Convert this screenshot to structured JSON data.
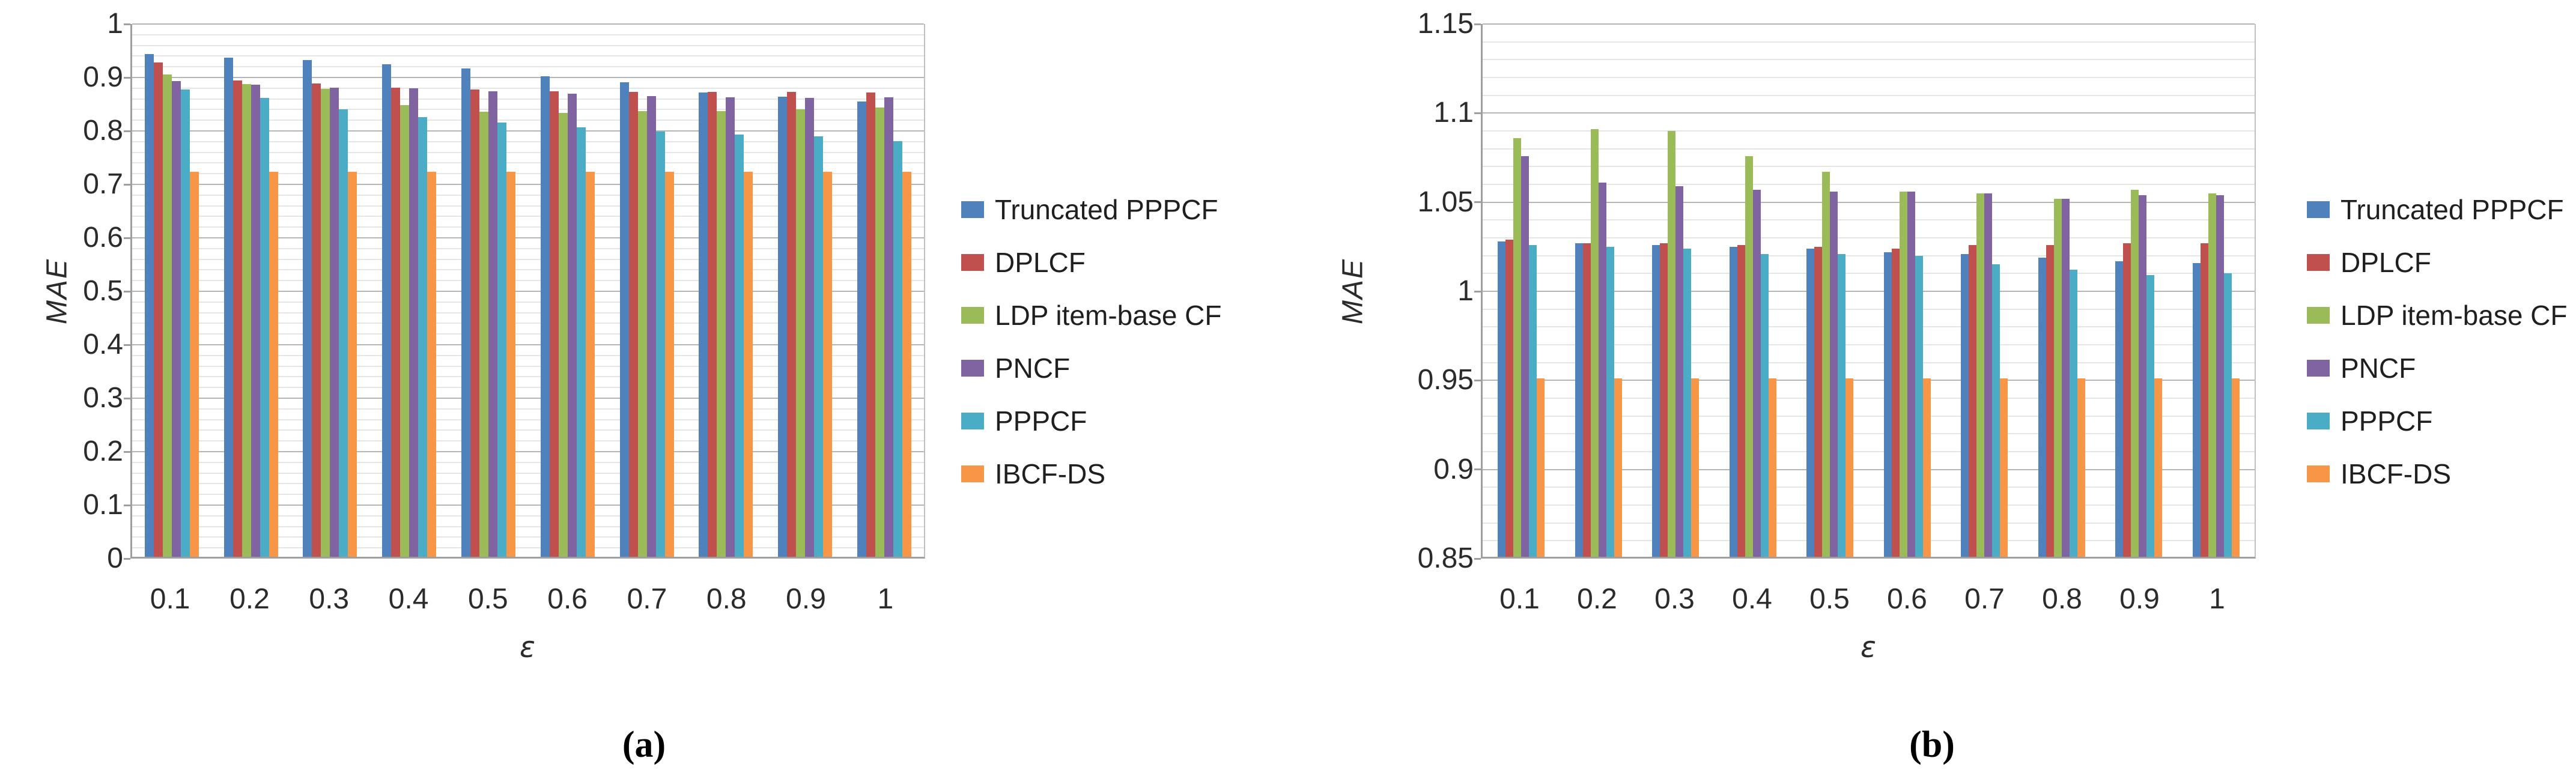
{
  "page": {
    "background": "#ffffff"
  },
  "legend": {
    "position": "right",
    "items": [
      {
        "label": "Truncated PPPCF",
        "color": "#4F81BD"
      },
      {
        "label": "DPLCF",
        "color": "#C0504D"
      },
      {
        "label": "LDP item-base CF",
        "color": "#9BBB59"
      },
      {
        "label": "PNCF",
        "color": "#8064A2"
      },
      {
        "label": "PPPCF",
        "color": "#4BACC6"
      },
      {
        "label": "IBCF-DS",
        "color": "#F79646"
      }
    ]
  },
  "chart_data": [
    {
      "id": "a",
      "type": "bar",
      "caption": "(a)",
      "xlabel": "ε",
      "ylabel": "MAE",
      "ylim": [
        0,
        1
      ],
      "ytick_major": 0.1,
      "ytick_minor": 0.02,
      "ytick_labels": [
        "1",
        "0.9",
        "0.8",
        "0.7",
        "0.6",
        "0.5",
        "0.4",
        "0.3",
        "0.2",
        "0.1",
        "0"
      ],
      "categories": [
        "0.1",
        "0.2",
        "0.3",
        "0.4",
        "0.5",
        "0.6",
        "0.7",
        "0.8",
        "0.9",
        "1"
      ],
      "grid": true,
      "legend_position": "right",
      "series": [
        {
          "name": "Truncated PPPCF",
          "color": "#4F81BD",
          "values": [
            0.94,
            0.934,
            0.929,
            0.921,
            0.913,
            0.899,
            0.888,
            0.869,
            0.861,
            0.852
          ]
        },
        {
          "name": "DPLCF",
          "color": "#C0504D",
          "values": [
            0.925,
            0.891,
            0.885,
            0.878,
            0.874,
            0.871,
            0.87,
            0.87,
            0.87,
            0.868
          ]
        },
        {
          "name": "LDP item-base CF",
          "color": "#9BBB59",
          "values": [
            0.902,
            0.884,
            0.875,
            0.845,
            0.833,
            0.83,
            0.834,
            0.834,
            0.837,
            0.84
          ]
        },
        {
          "name": "PNCF",
          "color": "#8064A2",
          "values": [
            0.89,
            0.883,
            0.877,
            0.876,
            0.871,
            0.866,
            0.862,
            0.86,
            0.859,
            0.86
          ]
        },
        {
          "name": "PPPCF",
          "color": "#4BACC6",
          "values": [
            0.874,
            0.859,
            0.837,
            0.822,
            0.812,
            0.803,
            0.795,
            0.79,
            0.786,
            0.778
          ]
        },
        {
          "name": "IBCF-DS",
          "color": "#F79646",
          "values": [
            0.72,
            0.72,
            0.72,
            0.72,
            0.72,
            0.72,
            0.72,
            0.72,
            0.72,
            0.72
          ]
        }
      ]
    },
    {
      "id": "b",
      "type": "bar",
      "caption": "(b)",
      "xlabel": "ε",
      "ylabel": "MAE",
      "ylim": [
        0.85,
        1.15
      ],
      "ytick_major": 0.05,
      "ytick_minor": 0.01,
      "ytick_labels": [
        "1.15",
        "1.1",
        "1.05",
        "1",
        "0.95",
        "0.9",
        "0.85"
      ],
      "categories": [
        "0.1",
        "0.2",
        "0.3",
        "0.4",
        "0.5",
        "0.6",
        "0.7",
        "0.8",
        "0.9",
        "1"
      ],
      "grid": true,
      "legend_position": "right",
      "series": [
        {
          "name": "Truncated PPPCF",
          "color": "#4F81BD",
          "values": [
            1.027,
            1.026,
            1.025,
            1.024,
            1.023,
            1.021,
            1.02,
            1.018,
            1.016,
            1.015
          ]
        },
        {
          "name": "DPLCF",
          "color": "#C0504D",
          "values": [
            1.028,
            1.026,
            1.026,
            1.025,
            1.024,
            1.023,
            1.025,
            1.025,
            1.026,
            1.026
          ]
        },
        {
          "name": "LDP item-base CF",
          "color": "#9BBB59",
          "values": [
            1.085,
            1.09,
            1.089,
            1.075,
            1.066,
            1.055,
            1.054,
            1.051,
            1.056,
            1.054
          ]
        },
        {
          "name": "PNCF",
          "color": "#8064A2",
          "values": [
            1.075,
            1.06,
            1.058,
            1.056,
            1.055,
            1.055,
            1.054,
            1.051,
            1.053,
            1.053
          ]
        },
        {
          "name": "PPPCF",
          "color": "#4BACC6",
          "values": [
            1.025,
            1.024,
            1.023,
            1.02,
            1.02,
            1.019,
            1.014,
            1.011,
            1.008,
            1.009
          ]
        },
        {
          "name": "IBCF-DS",
          "color": "#F79646",
          "values": [
            0.95,
            0.95,
            0.95,
            0.95,
            0.95,
            0.95,
            0.95,
            0.95,
            0.95,
            0.95
          ]
        }
      ]
    }
  ]
}
